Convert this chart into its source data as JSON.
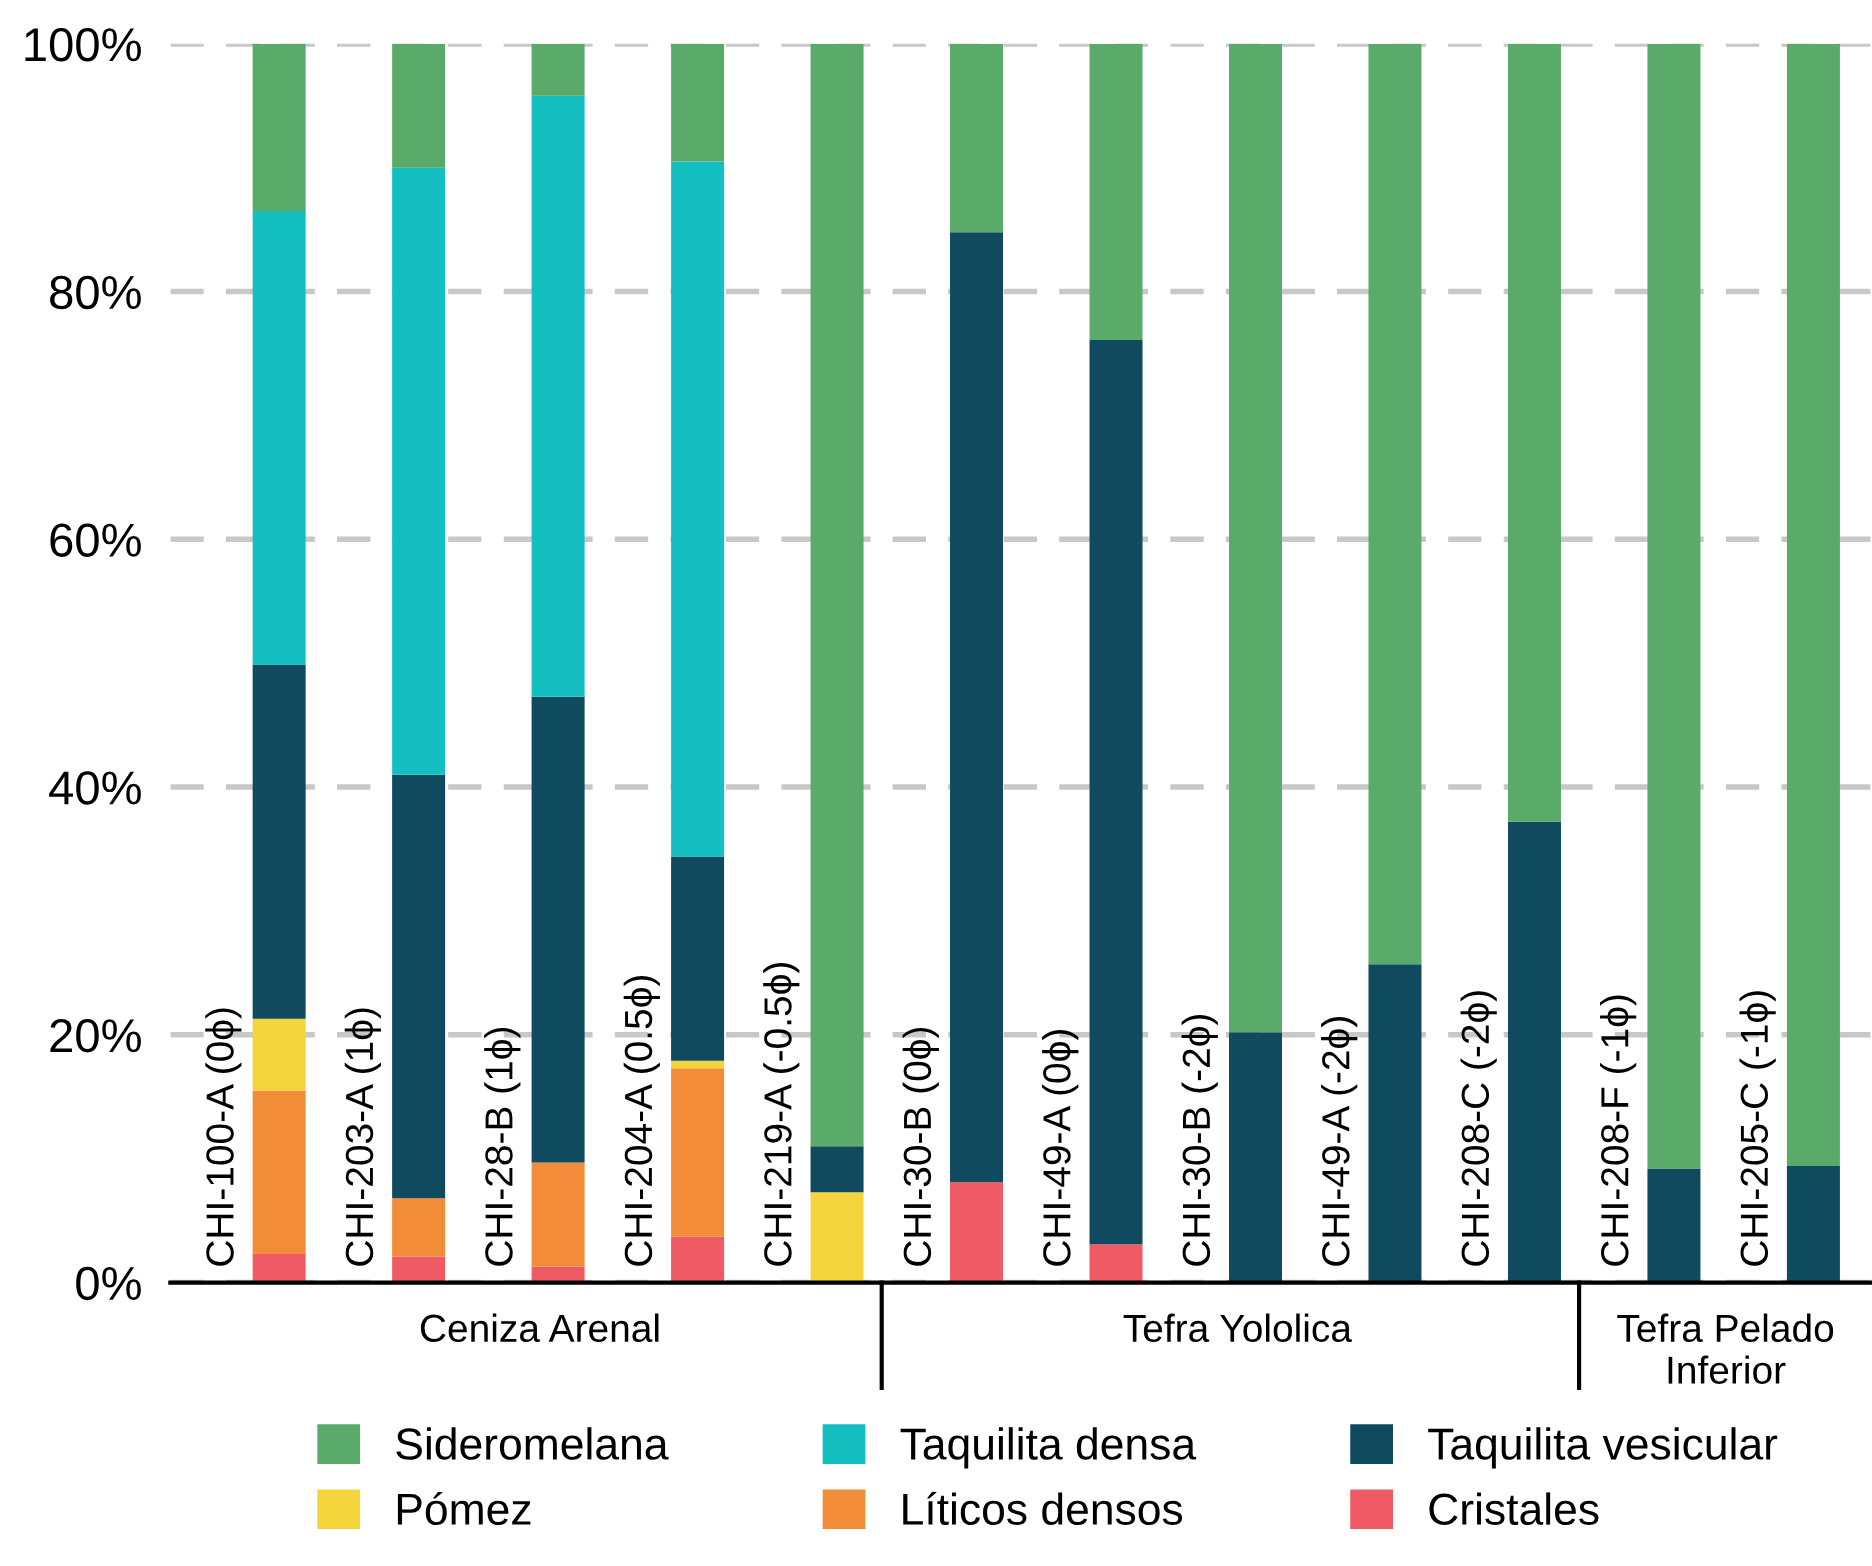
{
  "chart_data": {
    "type": "bar",
    "stacked": true,
    "categories": [
      "CHI-100-A (0ϕ)",
      "CHI-203-A (1ϕ)",
      "CHI-28-B (1ϕ)",
      "CHI-204-A (0.5ϕ)",
      "CHI-219-A (-0.5ϕ)",
      "CHI-30-B (0ϕ)",
      "CHI-49-A (0ϕ)",
      "CHI-30-B (-2ϕ)",
      "CHI-49-A (-2ϕ)",
      "CHI-208-C (-2ϕ)",
      "CHI-208-F (-1ϕ)",
      "CHI-205-C (-1ϕ)"
    ],
    "series": [
      {
        "name": "Cristales",
        "color": "#ef5a64",
        "values": [
          2.3,
          2.1,
          1.3,
          3.7,
          0,
          8.1,
          3.1,
          0,
          0,
          0,
          0,
          0
        ]
      },
      {
        "name": "Líticos densos",
        "color": "#f28c38",
        "values": [
          13.2,
          4.7,
          8.4,
          13.6,
          0,
          0,
          0,
          0,
          0,
          0,
          0,
          0
        ]
      },
      {
        "name": "Pómez",
        "color": "#f3d43a",
        "values": [
          5.8,
          0,
          0,
          0.6,
          7.3,
          0,
          0,
          0,
          0,
          0,
          0,
          0
        ]
      },
      {
        "name": "Taquilita vesicular",
        "color": "#0f4a5e",
        "values": [
          28.6,
          34.2,
          37.6,
          16.5,
          3.7,
          76.7,
          73.0,
          20.2,
          25.7,
          37.2,
          9.2,
          9.4
        ]
      },
      {
        "name": "Taquilita densa",
        "color": "#13bfc0",
        "values": [
          36.6,
          49.0,
          48.5,
          56.1,
          0,
          0,
          0,
          0,
          0,
          0,
          0,
          0
        ]
      },
      {
        "name": "Sideromelana",
        "color": "#5aaa6a",
        "values": [
          13.5,
          10.0,
          4.2,
          9.5,
          89.0,
          15.2,
          23.9,
          79.8,
          74.3,
          62.8,
          90.8,
          90.6
        ]
      }
    ],
    "ylim": [
      0,
      100
    ],
    "yticks": [
      {
        "value": 0,
        "label": "0%"
      },
      {
        "value": 20,
        "label": "20%"
      },
      {
        "value": 40,
        "label": "40%"
      },
      {
        "value": 60,
        "label": "60%"
      },
      {
        "value": 80,
        "label": "80%"
      },
      {
        "value": 100,
        "label": "100%"
      }
    ],
    "grid": "y",
    "legend": "bottom",
    "annotations": [
      "Ceniza Arenal",
      "Tefra Yololica",
      "Tefra Pelado\nInferior"
    ]
  }
}
